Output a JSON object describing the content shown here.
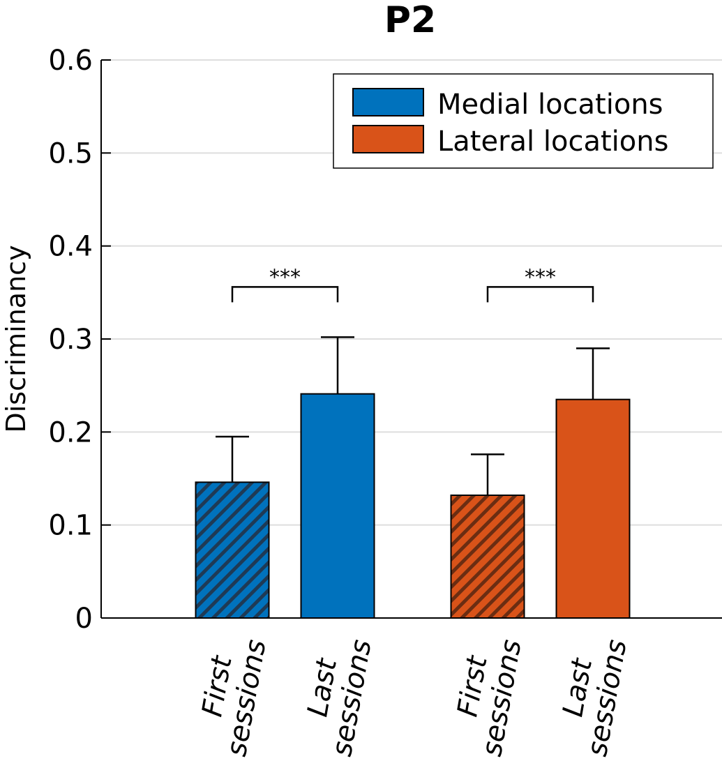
{
  "chart_data": {
    "type": "bar",
    "title": "P2",
    "ylabel": "Discriminancy",
    "xlabel": "",
    "ylim": [
      0,
      0.6
    ],
    "yticks": [
      "0",
      "0.1",
      "0.2",
      "0.3",
      "0.4",
      "0.5",
      "0.6"
    ],
    "grid": true,
    "legend_position": "top-right",
    "legend": [
      {
        "label": "Medial locations",
        "color": "#0072BD"
      },
      {
        "label": "Lateral locations",
        "color": "#D95319"
      }
    ],
    "bars": [
      {
        "label_line1": "First",
        "label_line2": "sessions",
        "group": "Medial locations",
        "value": 0.146,
        "error": 0.049,
        "hatched": true,
        "color": "#0072BD"
      },
      {
        "label_line1": "Last",
        "label_line2": "sessions",
        "group": "Medial locations",
        "value": 0.241,
        "error": 0.061,
        "hatched": false,
        "color": "#0072BD"
      },
      {
        "label_line1": "First",
        "label_line2": "sessions",
        "group": "Lateral locations",
        "value": 0.132,
        "error": 0.044,
        "hatched": true,
        "color": "#D95319"
      },
      {
        "label_line1": "Last",
        "label_line2": "sessions",
        "group": "Lateral locations",
        "value": 0.235,
        "error": 0.055,
        "hatched": false,
        "color": "#D95319"
      }
    ],
    "significance": [
      {
        "from": 0,
        "to": 1,
        "label": "***",
        "y": 0.356
      },
      {
        "from": 2,
        "to": 3,
        "label": "***",
        "y": 0.356
      }
    ]
  }
}
